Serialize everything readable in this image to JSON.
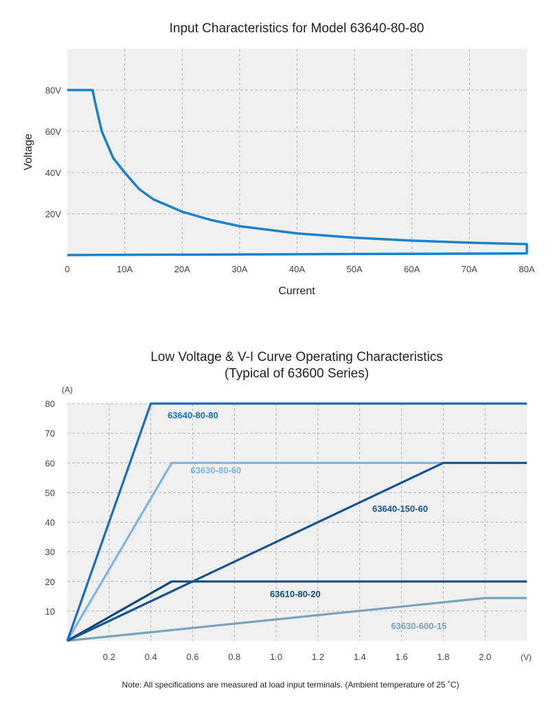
{
  "chart_data": [
    {
      "type": "line",
      "title": "Input Characteristics for Model 63640-80-80",
      "xlabel": "Current",
      "ylabel": "Voltage",
      "xlim": [
        0,
        80
      ],
      "ylim": [
        0,
        100
      ],
      "x_ticks": [
        {
          "value": 0,
          "label": "0"
        },
        {
          "value": 10,
          "label": "10A"
        },
        {
          "value": 20,
          "label": "20A"
        },
        {
          "value": 30,
          "label": "30A"
        },
        {
          "value": 40,
          "label": "40A"
        },
        {
          "value": 50,
          "label": "50A"
        },
        {
          "value": 60,
          "label": "60A"
        },
        {
          "value": 70,
          "label": "70A"
        },
        {
          "value": 80,
          "label": "80A"
        }
      ],
      "y_ticks": [
        {
          "value": 20,
          "label": "20V"
        },
        {
          "value": 40,
          "label": "40V"
        },
        {
          "value": 60,
          "label": "60V"
        },
        {
          "value": 80,
          "label": "80V"
        }
      ],
      "grid": true,
      "series": [
        {
          "color": "#1a82c8",
          "x": [
            0,
            4.4,
            5,
            6,
            8,
            10,
            12.5,
            15,
            20,
            25,
            30,
            40,
            50,
            60,
            70,
            80,
            80,
            0
          ],
          "y": [
            80,
            80,
            72,
            60,
            47,
            40,
            32,
            27,
            21,
            17,
            14,
            10.5,
            8.4,
            7,
            6,
            5.3,
            0.8,
            0
          ]
        }
      ]
    },
    {
      "type": "line",
      "title": "Low Voltage & V-I Curve Operating Characteristics",
      "subtitle": "(Typical of 63600 Series)",
      "x_unit": "(V)",
      "y_unit": "(A)",
      "xlim": [
        0,
        2.2
      ],
      "ylim": [
        0,
        80
      ],
      "x_ticks": [
        "0.2",
        "0.4",
        "0.6",
        "0.8",
        "1.0",
        "1.2",
        "1.4",
        "1.6",
        "1.8",
        "2.0"
      ],
      "y_ticks": [
        "10",
        "20",
        "30",
        "40",
        "50",
        "60",
        "70",
        "80"
      ],
      "grid": true,
      "series": [
        {
          "name": "63640-80-80",
          "color": "#1a6db5",
          "x": [
            0,
            0.4,
            2.2
          ],
          "y": [
            0,
            80,
            80
          ]
        },
        {
          "name": "63630-80-60",
          "color": "#7fb4e2",
          "x": [
            0,
            0.5,
            1.8
          ],
          "y": [
            0,
            60,
            60
          ]
        },
        {
          "name": "63640-150-60",
          "color": "#14558f",
          "x": [
            0,
            1.8,
            2.2
          ],
          "y": [
            0,
            60,
            60
          ]
        },
        {
          "name": "63610-80-20",
          "color": "#124a7a",
          "x": [
            0,
            0.5,
            2.2
          ],
          "y": [
            0,
            20,
            20
          ]
        },
        {
          "name": "63630-600-15",
          "color": "#7aa3bc",
          "x": [
            0,
            2.0,
            2.2
          ],
          "y": [
            0,
            14.4,
            14.4
          ]
        }
      ]
    }
  ],
  "footnote": "Note: All specifications are measured at load input terminals. (Ambient temperature of 25 ˚C)"
}
